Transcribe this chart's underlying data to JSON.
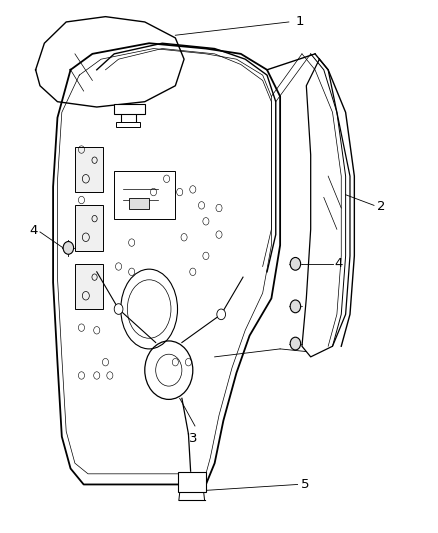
{
  "background_color": "#ffffff",
  "line_color": "#000000",
  "label_color": "#000000",
  "fig_width": 4.38,
  "fig_height": 5.33,
  "dpi": 100
}
